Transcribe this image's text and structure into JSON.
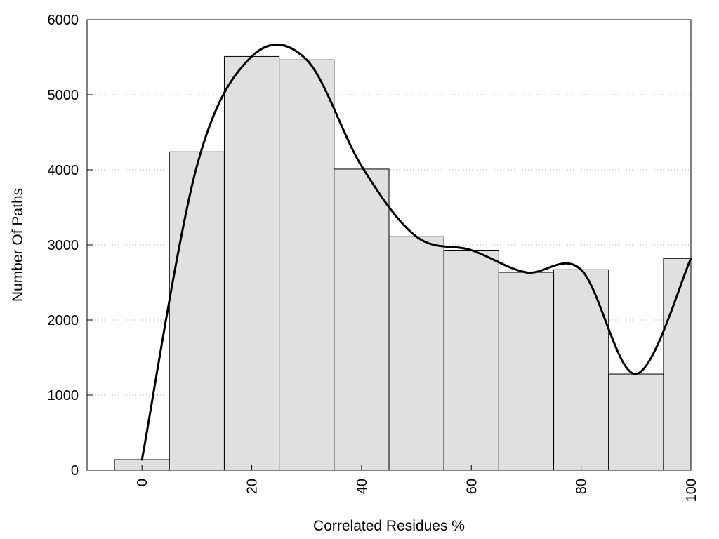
{
  "chart_data": {
    "type": "bar",
    "title": "",
    "xlabel": "Correlated Residues %",
    "ylabel": "Number Of Paths",
    "x": [
      0,
      10,
      20,
      30,
      40,
      50,
      60,
      70,
      80,
      90,
      100
    ],
    "values": [
      140,
      4240,
      5510,
      5465,
      4010,
      3110,
      2930,
      2635,
      2670,
      1280,
      2820
    ],
    "bin_width": 10,
    "xlim": [
      -10,
      100
    ],
    "ylim": [
      0,
      6000
    ],
    "xticks": [
      0,
      20,
      40,
      60,
      80,
      100
    ],
    "yticks": [
      0,
      1000,
      2000,
      3000,
      4000,
      5000,
      6000
    ],
    "grid": "horizontal dotted",
    "bar_color": "#e0e0e0",
    "edge_color": "#000000",
    "series": [
      {
        "type": "line",
        "smooth": true,
        "color": "#000000",
        "x": [
          0,
          10,
          20,
          30,
          40,
          50,
          60,
          70,
          80,
          90,
          100
        ],
        "values": [
          140,
          4050,
          5510,
          5465,
          4050,
          3110,
          2930,
          2635,
          2670,
          1280,
          2820
        ]
      }
    ]
  }
}
